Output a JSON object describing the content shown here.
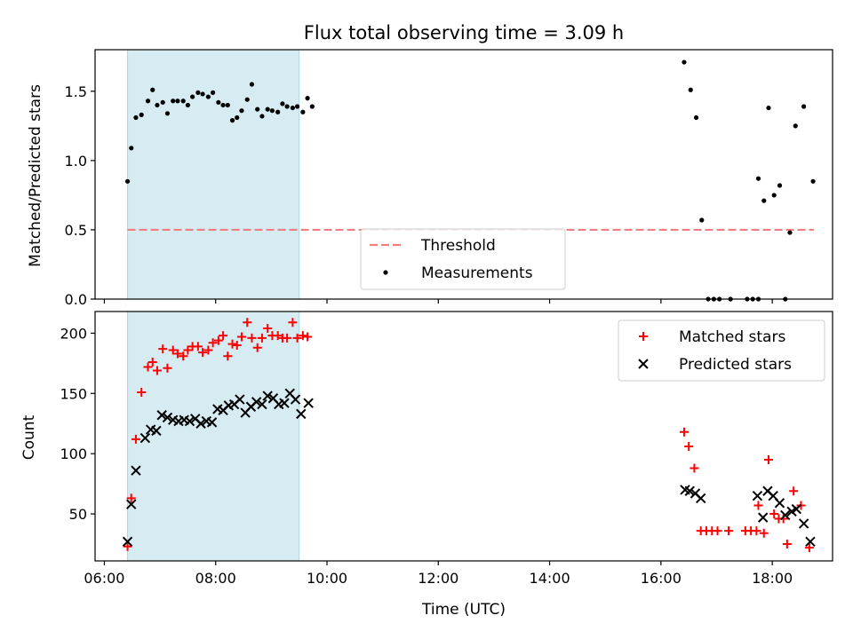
{
  "title": "Flux total observing time = 3.09 h",
  "xlabel": "Time (UTC)",
  "shade_color": "#add8e6",
  "chart_data": [
    {
      "type": "scatter",
      "ylabel": "Matched/Predicted stars",
      "xlim": [
        "05:50",
        "19:05"
      ],
      "ylim": [
        0,
        1.8
      ],
      "yticks": [
        "0.0",
        "0.5",
        "1.0",
        "1.5"
      ],
      "shaded_range": [
        "06:25",
        "09:30"
      ],
      "legend": {
        "placement": "lower-center",
        "entries": [
          {
            "label": "Threshold",
            "kind": "dashed-line",
            "color": "#f08080"
          },
          {
            "label": "Measurements",
            "kind": "dot",
            "color": "#000000"
          }
        ]
      },
      "threshold": {
        "name": "Threshold",
        "value": 0.5,
        "x": [
          "06:25",
          "18:45"
        ],
        "color": "#f08080",
        "style": "dashed"
      },
      "series": [
        {
          "name": "Measurements",
          "marker": "dot",
          "color": "#000000",
          "points": [
            {
              "x": "06:25",
              "y": 0.85
            },
            {
              "x": "06:29",
              "y": 1.09
            },
            {
              "x": "06:34",
              "y": 1.31
            },
            {
              "x": "06:40",
              "y": 1.33
            },
            {
              "x": "06:47",
              "y": 1.43
            },
            {
              "x": "06:52",
              "y": 1.51
            },
            {
              "x": "06:57",
              "y": 1.4
            },
            {
              "x": "07:03",
              "y": 1.42
            },
            {
              "x": "07:08",
              "y": 1.34
            },
            {
              "x": "07:14",
              "y": 1.43
            },
            {
              "x": "07:19",
              "y": 1.43
            },
            {
              "x": "07:25",
              "y": 1.43
            },
            {
              "x": "07:30",
              "y": 1.4
            },
            {
              "x": "07:35",
              "y": 1.46
            },
            {
              "x": "07:41",
              "y": 1.49
            },
            {
              "x": "07:46",
              "y": 1.48
            },
            {
              "x": "07:52",
              "y": 1.46
            },
            {
              "x": "07:57",
              "y": 1.49
            },
            {
              "x": "08:03",
              "y": 1.42
            },
            {
              "x": "08:08",
              "y": 1.4
            },
            {
              "x": "08:13",
              "y": 1.4
            },
            {
              "x": "08:18",
              "y": 1.29
            },
            {
              "x": "08:23",
              "y": 1.31
            },
            {
              "x": "08:28",
              "y": 1.36
            },
            {
              "x": "08:34",
              "y": 1.44
            },
            {
              "x": "08:39",
              "y": 1.55
            },
            {
              "x": "08:45",
              "y": 1.37
            },
            {
              "x": "08:50",
              "y": 1.32
            },
            {
              "x": "08:56",
              "y": 1.37
            },
            {
              "x": "09:01",
              "y": 1.36
            },
            {
              "x": "09:07",
              "y": 1.35
            },
            {
              "x": "09:12",
              "y": 1.41
            },
            {
              "x": "09:17",
              "y": 1.39
            },
            {
              "x": "09:23",
              "y": 1.38
            },
            {
              "x": "09:28",
              "y": 1.39
            },
            {
              "x": "09:34",
              "y": 1.35
            },
            {
              "x": "09:39",
              "y": 1.45
            },
            {
              "x": "09:44",
              "y": 1.39
            },
            {
              "x": "16:25",
              "y": 1.71
            },
            {
              "x": "16:32",
              "y": 1.51
            },
            {
              "x": "16:38",
              "y": 1.31
            },
            {
              "x": "16:44",
              "y": 0.57
            },
            {
              "x": "16:51",
              "y": 0.0
            },
            {
              "x": "16:57",
              "y": 0.0
            },
            {
              "x": "17:03",
              "y": 0.0
            },
            {
              "x": "17:15",
              "y": 0.0
            },
            {
              "x": "17:33",
              "y": 0.0
            },
            {
              "x": "17:39",
              "y": 0.0
            },
            {
              "x": "17:45",
              "y": 0.0
            },
            {
              "x": "17:45",
              "y": 0.87
            },
            {
              "x": "17:51",
              "y": 0.71
            },
            {
              "x": "17:56",
              "y": 1.38
            },
            {
              "x": "18:02",
              "y": 0.75
            },
            {
              "x": "18:08",
              "y": 0.82
            },
            {
              "x": "18:14",
              "y": 0.0
            },
            {
              "x": "18:19",
              "y": 0.48
            },
            {
              "x": "18:25",
              "y": 1.25
            },
            {
              "x": "18:34",
              "y": 1.39
            },
            {
              "x": "18:44",
              "y": 0.85
            }
          ]
        }
      ]
    },
    {
      "type": "scatter",
      "ylabel": "Count",
      "xlim": [
        "05:50",
        "19:05"
      ],
      "ylim": [
        11,
        218
      ],
      "yticks": [
        "50",
        "100",
        "150",
        "200"
      ],
      "xticks": [
        "06:00",
        "08:00",
        "10:00",
        "12:00",
        "14:00",
        "16:00",
        "18:00"
      ],
      "shaded_range": [
        "06:25",
        "09:30"
      ],
      "legend": {
        "placement": "top-right",
        "entries": [
          {
            "label": "Matched stars",
            "kind": "plus",
            "color": "#ff0000"
          },
          {
            "label": "Predicted stars",
            "kind": "cross",
            "color": "#000000"
          }
        ]
      },
      "series": [
        {
          "name": "Matched stars",
          "marker": "plus",
          "color": "#ff0000",
          "points": [
            {
              "x": "06:25",
              "y": 23
            },
            {
              "x": "06:29",
              "y": 63
            },
            {
              "x": "06:34",
              "y": 112
            },
            {
              "x": "06:40",
              "y": 151
            },
            {
              "x": "06:47",
              "y": 172
            },
            {
              "x": "06:52",
              "y": 176
            },
            {
              "x": "06:57",
              "y": 169
            },
            {
              "x": "07:03",
              "y": 187
            },
            {
              "x": "07:08",
              "y": 171
            },
            {
              "x": "07:14",
              "y": 186
            },
            {
              "x": "07:19",
              "y": 183
            },
            {
              "x": "07:25",
              "y": 181
            },
            {
              "x": "07:30",
              "y": 186
            },
            {
              "x": "07:35",
              "y": 189
            },
            {
              "x": "07:41",
              "y": 189
            },
            {
              "x": "07:46",
              "y": 184
            },
            {
              "x": "07:52",
              "y": 186
            },
            {
              "x": "07:57",
              "y": 192
            },
            {
              "x": "08:03",
              "y": 194
            },
            {
              "x": "08:08",
              "y": 198
            },
            {
              "x": "08:13",
              "y": 181
            },
            {
              "x": "08:18",
              "y": 191
            },
            {
              "x": "08:23",
              "y": 190
            },
            {
              "x": "08:28",
              "y": 197
            },
            {
              "x": "08:34",
              "y": 209
            },
            {
              "x": "08:39",
              "y": 196
            },
            {
              "x": "08:45",
              "y": 188
            },
            {
              "x": "08:50",
              "y": 196
            },
            {
              "x": "08:56",
              "y": 204
            },
            {
              "x": "09:01",
              "y": 198
            },
            {
              "x": "09:07",
              "y": 198
            },
            {
              "x": "09:12",
              "y": 196
            },
            {
              "x": "09:17",
              "y": 196
            },
            {
              "x": "09:23",
              "y": 209
            },
            {
              "x": "09:28",
              "y": 196
            },
            {
              "x": "09:34",
              "y": 198
            },
            {
              "x": "09:39",
              "y": 197
            },
            {
              "x": "16:25",
              "y": 118
            },
            {
              "x": "16:30",
              "y": 106
            },
            {
              "x": "16:36",
              "y": 88
            },
            {
              "x": "16:43",
              "y": 36
            },
            {
              "x": "16:49",
              "y": 36
            },
            {
              "x": "16:55",
              "y": 36
            },
            {
              "x": "17:01",
              "y": 36
            },
            {
              "x": "17:13",
              "y": 36
            },
            {
              "x": "17:31",
              "y": 36
            },
            {
              "x": "17:37",
              "y": 36
            },
            {
              "x": "17:43",
              "y": 36
            },
            {
              "x": "17:45",
              "y": 57
            },
            {
              "x": "17:51",
              "y": 34
            },
            {
              "x": "17:56",
              "y": 95
            },
            {
              "x": "18:02",
              "y": 50
            },
            {
              "x": "18:07",
              "y": 46
            },
            {
              "x": "18:12",
              "y": 46
            },
            {
              "x": "18:16",
              "y": 25
            },
            {
              "x": "18:23",
              "y": 69
            },
            {
              "x": "18:31",
              "y": 57
            },
            {
              "x": "18:40",
              "y": 22
            }
          ]
        },
        {
          "name": "Predicted stars",
          "marker": "cross",
          "color": "#000000",
          "points": [
            {
              "x": "06:25",
              "y": 27
            },
            {
              "x": "06:29",
              "y": 58
            },
            {
              "x": "06:34",
              "y": 86
            },
            {
              "x": "06:44",
              "y": 113
            },
            {
              "x": "06:50",
              "y": 120
            },
            {
              "x": "06:56",
              "y": 119
            },
            {
              "x": "07:02",
              "y": 132
            },
            {
              "x": "07:08",
              "y": 130
            },
            {
              "x": "07:14",
              "y": 128
            },
            {
              "x": "07:20",
              "y": 127
            },
            {
              "x": "07:26",
              "y": 128
            },
            {
              "x": "07:32",
              "y": 127
            },
            {
              "x": "07:38",
              "y": 129
            },
            {
              "x": "07:44",
              "y": 125
            },
            {
              "x": "07:50",
              "y": 127
            },
            {
              "x": "07:56",
              "y": 126
            },
            {
              "x": "08:02",
              "y": 137
            },
            {
              "x": "08:08",
              "y": 136
            },
            {
              "x": "08:14",
              "y": 140
            },
            {
              "x": "08:20",
              "y": 141
            },
            {
              "x": "08:26",
              "y": 145
            },
            {
              "x": "08:32",
              "y": 134
            },
            {
              "x": "08:38",
              "y": 139
            },
            {
              "x": "08:44",
              "y": 143
            },
            {
              "x": "08:50",
              "y": 141
            },
            {
              "x": "08:56",
              "y": 148
            },
            {
              "x": "09:02",
              "y": 146
            },
            {
              "x": "09:08",
              "y": 141
            },
            {
              "x": "09:14",
              "y": 142
            },
            {
              "x": "09:20",
              "y": 150
            },
            {
              "x": "09:26",
              "y": 145
            },
            {
              "x": "09:32",
              "y": 133
            },
            {
              "x": "09:40",
              "y": 142
            },
            {
              "x": "16:26",
              "y": 70
            },
            {
              "x": "16:31",
              "y": 69
            },
            {
              "x": "16:37",
              "y": 67
            },
            {
              "x": "16:43",
              "y": 63
            },
            {
              "x": "17:44",
              "y": 65
            },
            {
              "x": "17:50",
              "y": 47
            },
            {
              "x": "17:55",
              "y": 69
            },
            {
              "x": "18:01",
              "y": 65
            },
            {
              "x": "18:08",
              "y": 59
            },
            {
              "x": "18:14",
              "y": 49
            },
            {
              "x": "18:21",
              "y": 52
            },
            {
              "x": "18:26",
              "y": 54
            },
            {
              "x": "18:34",
              "y": 42
            },
            {
              "x": "18:41",
              "y": 27
            }
          ]
        }
      ]
    }
  ]
}
